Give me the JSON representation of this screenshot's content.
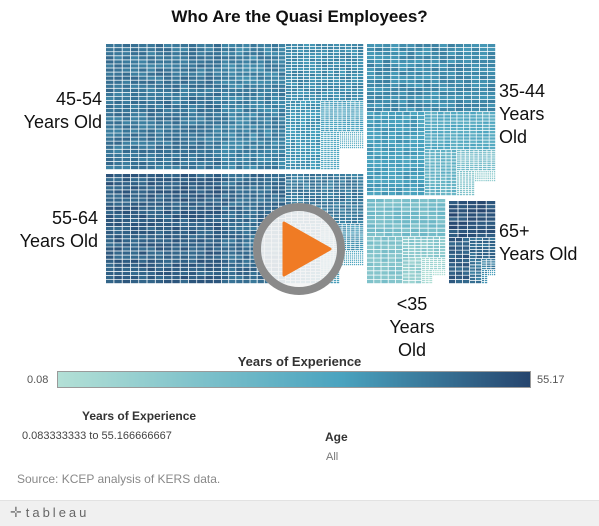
{
  "chart_data": {
    "type": "treemap",
    "title": "Who Are the Quasi Employees?",
    "groups": [
      {
        "name": "45-54\nYears Old",
        "shade_min": 0.55,
        "shade_max": 0.85
      },
      {
        "name": "35-44\nYears\nOld",
        "shade_min": 0.25,
        "shade_max": 0.75
      },
      {
        "name": "55-64\nYears Old",
        "shade_min": 0.6,
        "shade_max": 0.95
      },
      {
        "name": "<35\nYears\nOld",
        "shade_min": 0.05,
        "shade_max": 0.4
      },
      {
        "name": "65+\nYears Old",
        "shade_min": 0.7,
        "shade_max": 1.0
      }
    ],
    "color_legend": {
      "title": "Years of Experience",
      "min_label": "0.08",
      "max_label": "55.17",
      "min": 0.08,
      "max": 55.17,
      "color_low": "#b3e0d6",
      "color_mid": "#4aa3bf",
      "color_high": "#26456e"
    }
  },
  "filters": {
    "experience": {
      "title": "Years of Experience",
      "value": "0.083333333 to 55.166666667"
    },
    "age": {
      "title": "Age",
      "value": "All"
    }
  },
  "source": "Source: KCEP analysis of KERS data.",
  "footer": {
    "logo": "tableau",
    "logo_mark": "✛"
  },
  "colors": {
    "play_ring": "#8a8a8a",
    "play_triangle": "#f07b24"
  }
}
